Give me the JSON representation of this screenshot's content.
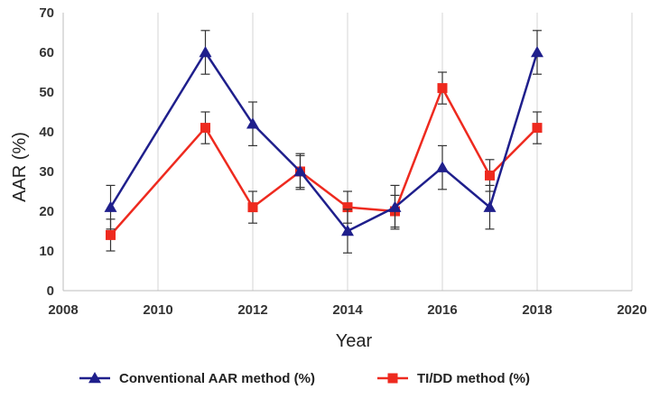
{
  "chart_data": {
    "type": "line",
    "title": "",
    "xlabel": "Year",
    "ylabel": "AAR (%)",
    "xlim": [
      2008,
      2020
    ],
    "ylim": [
      0,
      70
    ],
    "xticks": [
      2008,
      2010,
      2012,
      2014,
      2016,
      2018,
      2020
    ],
    "yticks": [
      0,
      10,
      20,
      30,
      40,
      50,
      60,
      70
    ],
    "x_tick_labels": [
      "2008",
      "2010",
      "2012",
      "2014",
      "2016",
      "2018",
      "2020"
    ],
    "y_tick_labels": [
      "0",
      "10",
      "20",
      "30",
      "40",
      "50",
      "60",
      "70"
    ],
    "grid": "vertical",
    "legend": "bottom",
    "series": [
      {
        "name": "Conventional AAR method (%)",
        "color": "#1f1f8c",
        "marker": "triangle",
        "x": [
          2009,
          2011,
          2012,
          2013,
          2014,
          2015,
          2016,
          2017,
          2018
        ],
        "y": [
          21,
          60,
          42,
          30,
          15,
          21,
          31,
          21,
          60
        ],
        "error": [
          5.5,
          5.5,
          5.5,
          4.5,
          5.5,
          5.5,
          5.5,
          5.5,
          5.5
        ]
      },
      {
        "name": "TI/DD method (%)",
        "color": "#ee2a1f",
        "marker": "square",
        "x": [
          2009,
          2011,
          2012,
          2013,
          2014,
          2015,
          2016,
          2017,
          2018
        ],
        "y": [
          14,
          41,
          21,
          30,
          21,
          20,
          51,
          29,
          41
        ],
        "error": [
          4,
          4,
          4,
          4,
          4,
          4,
          4,
          4,
          4
        ]
      }
    ]
  }
}
